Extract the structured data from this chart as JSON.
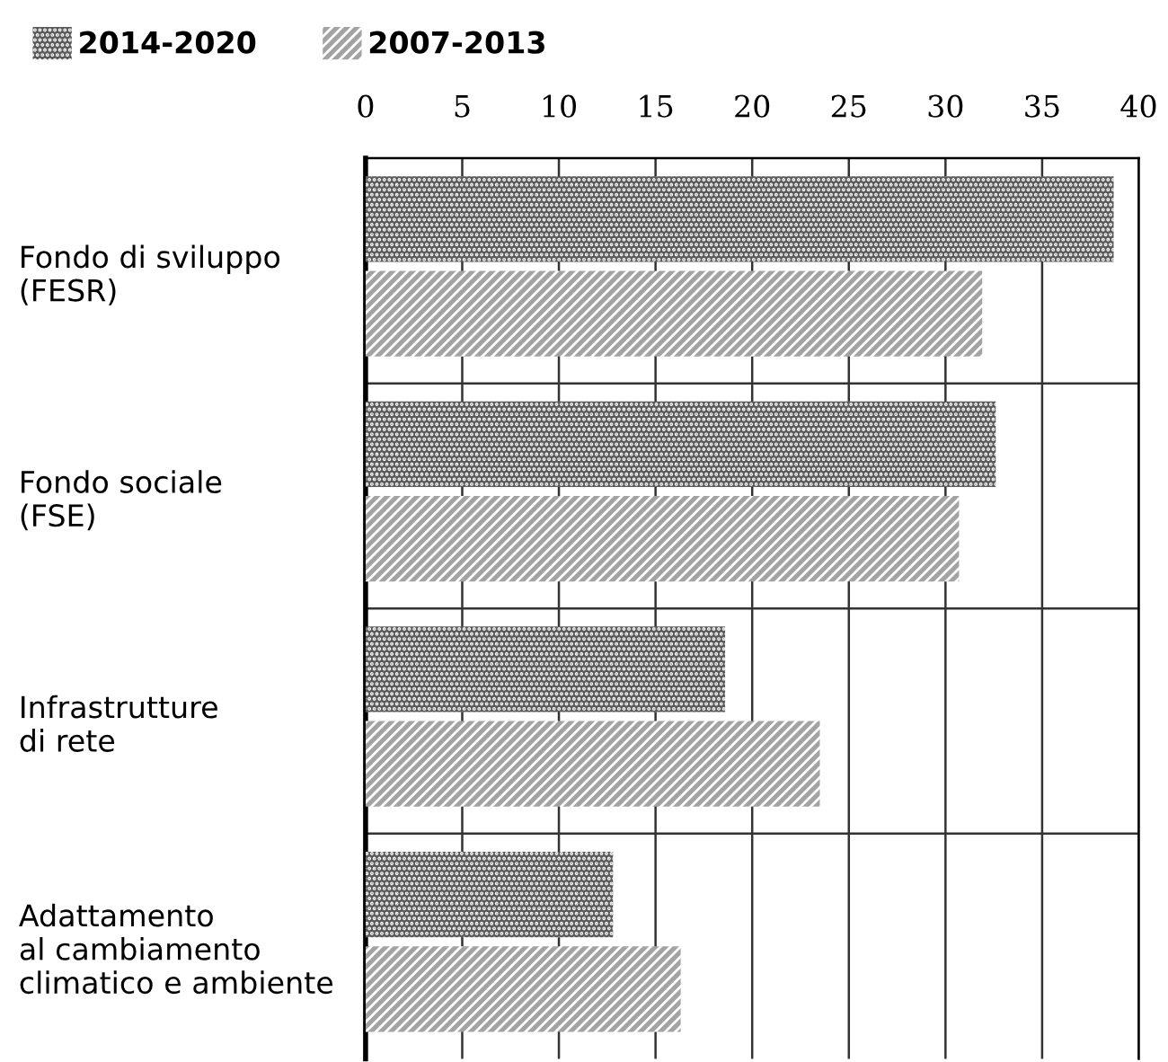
{
  "chart_data": {
    "type": "bar",
    "orientation": "horizontal",
    "categories": [
      "Fondo di sviluppo\n(FESR)",
      "Fondo sociale\n(FSE)",
      "Infrastrutture\ndi rete",
      "Adattamento\nal cambiamento\nclimatico e ambiente"
    ],
    "series": [
      {
        "name": "2014-2020",
        "color": "#5a5a5a",
        "values": [
          38.7,
          32.6,
          18.6,
          12.8
        ]
      },
      {
        "name": "2007-2013",
        "color": "#a3a3a3",
        "values": [
          31.9,
          30.7,
          23.5,
          16.3
        ]
      }
    ],
    "xlim": [
      0,
      40
    ],
    "xticks": [
      0,
      5,
      10,
      15,
      20,
      25,
      30,
      35,
      40
    ],
    "grid": true,
    "legend": "top left"
  }
}
